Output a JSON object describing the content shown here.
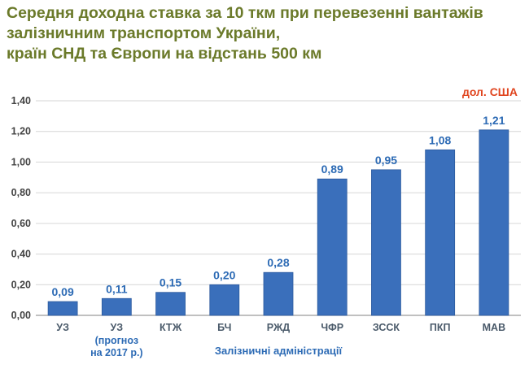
{
  "title_lines": [
    "Середня доходна ставка за 10 ткм при перевезенні вантажів",
    "залізничним транспортом України,",
    "країн СНД та Європи на відстань 500 км"
  ],
  "colors": {
    "title": "#6b7a2a",
    "unit": "#e0451f",
    "bar": "#3a6fbb",
    "bar_edge": "#2c5a9e",
    "grid": "#d6d6d6",
    "value_label": "#2d6bb5"
  },
  "chart_data": {
    "type": "bar",
    "unit_label": "дол. США",
    "xlabel": "Залізничні адміністрації",
    "ylabel": "",
    "ylim": [
      0,
      1.4
    ],
    "y_ticks": [
      "0,00",
      "0,20",
      "0,40",
      "0,60",
      "0,80",
      "1,00",
      "1,20",
      "1,40"
    ],
    "grid": true,
    "categories": [
      {
        "label": "УЗ",
        "note": ""
      },
      {
        "label": "УЗ",
        "note": "(прогноз на 2017 р.)",
        "note_lines": [
          "(прогноз",
          "на 2017 р.)"
        ]
      },
      {
        "label": "КТЖ",
        "note": ""
      },
      {
        "label": "БЧ",
        "note": ""
      },
      {
        "label": "РЖД",
        "note": ""
      },
      {
        "label": "ЧФР",
        "note": ""
      },
      {
        "label": "ЗССК",
        "note": ""
      },
      {
        "label": "ПКП",
        "note": ""
      },
      {
        "label": "МАВ",
        "note": ""
      }
    ],
    "values": [
      0.09,
      0.11,
      0.15,
      0.2,
      0.28,
      0.89,
      0.95,
      1.08,
      1.21
    ],
    "value_labels": [
      "0,09",
      "0,11",
      "0,15",
      "0,20",
      "0,28",
      "0,89",
      "0,95",
      "1,08",
      "1,21"
    ]
  }
}
